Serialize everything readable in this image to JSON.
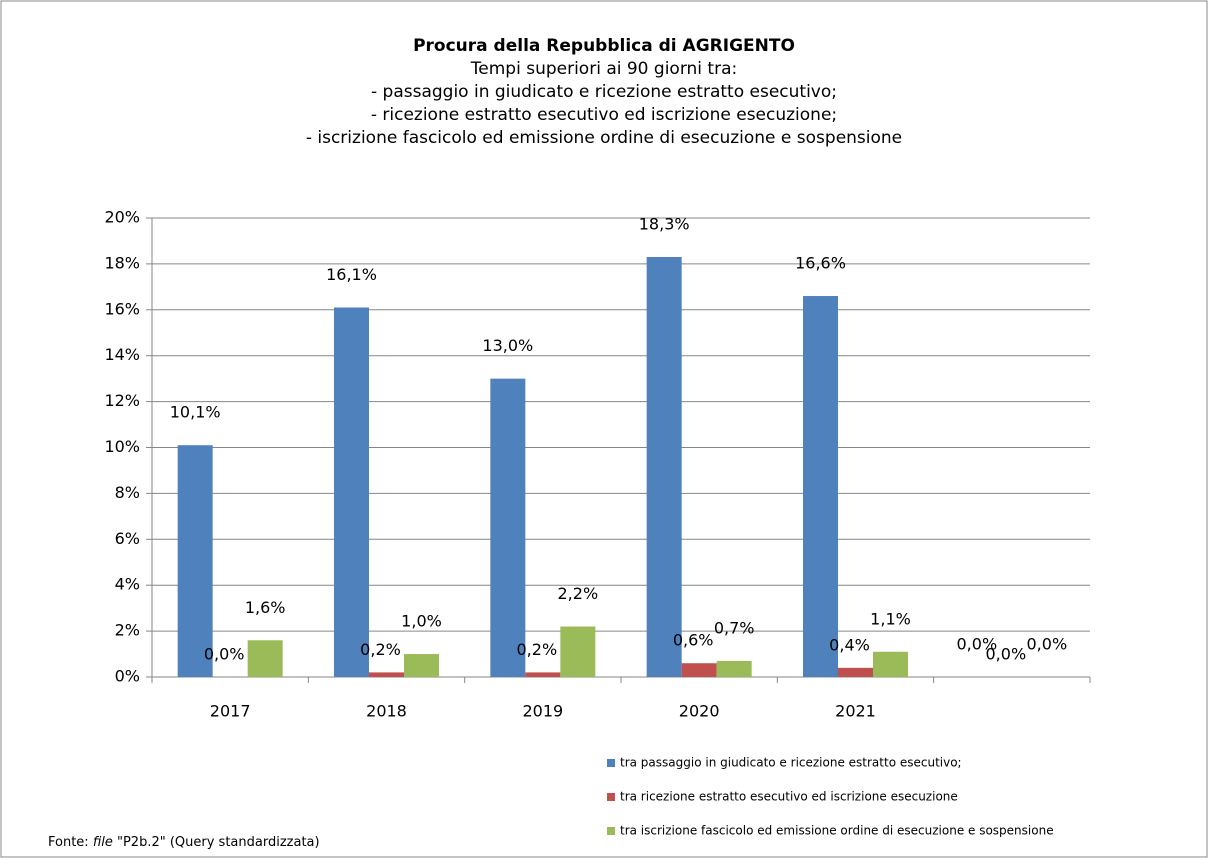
{
  "chart_data": {
    "type": "bar",
    "title": "Procura della Repubblica di AGRIGENTO",
    "subtitle": [
      "Tempi superiori ai 90 giorni tra:",
      "- passaggio in giudicato e ricezione estratto esecutivo;",
      "- ricezione estratto esecutivo ed iscrizione esecuzione;",
      "- iscrizione fascicolo ed emissione ordine di esecuzione e sospensione"
    ],
    "source_parts": [
      "Fonte:",
      "file",
      "\"P2b.2\" (Query standardizzata)"
    ],
    "categories": [
      "2017",
      "2018",
      "2019",
      "2020",
      "2021",
      null
    ],
    "series": [
      {
        "name": "tra passaggio in giudicato e ricezione estratto esecutivo;",
        "color": "#4f81bd",
        "values": [
          10.1,
          16.1,
          13.0,
          18.3,
          16.6,
          0.0
        ],
        "value_labels": [
          "10,1%",
          "16,1%",
          "13,0%",
          "18,3%",
          "16,6%",
          "0,0%"
        ]
      },
      {
        "name": "tra ricezione estratto esecutivo ed iscrizione esecuzione",
        "color": "#c0504d",
        "values": [
          0.0,
          0.2,
          0.2,
          0.6,
          0.4,
          0.0
        ],
        "value_labels": [
          "0,0%",
          "0,2%",
          "0,2%",
          "0,6%",
          "0,4%",
          "0,0%"
        ]
      },
      {
        "name": "tra iscrizione fascicolo ed emissione ordine di esecuzione e sospensione",
        "color": "#9bbb59",
        "values": [
          1.6,
          1.0,
          2.2,
          0.7,
          1.1,
          0.0
        ],
        "value_labels": [
          "1,6%",
          "1,0%",
          "2,2%",
          "0,7%",
          "1,1%",
          "0,0%"
        ]
      }
    ],
    "ylim": [
      0,
      20
    ],
    "yticks": [
      {
        "value": 0,
        "label": "0%"
      },
      {
        "value": 2,
        "label": "2%"
      },
      {
        "value": 4,
        "label": "4%"
      },
      {
        "value": 6,
        "label": "6%"
      },
      {
        "value": 8,
        "label": "8%"
      },
      {
        "value": 10,
        "label": "10%"
      },
      {
        "value": 12,
        "label": "12%"
      },
      {
        "value": 14,
        "label": "14%"
      },
      {
        "value": 16,
        "label": "16%"
      },
      {
        "value": 18,
        "label": "18%"
      },
      {
        "value": 20,
        "label": "20%"
      }
    ],
    "grid": true,
    "legend": "bottom-right"
  }
}
